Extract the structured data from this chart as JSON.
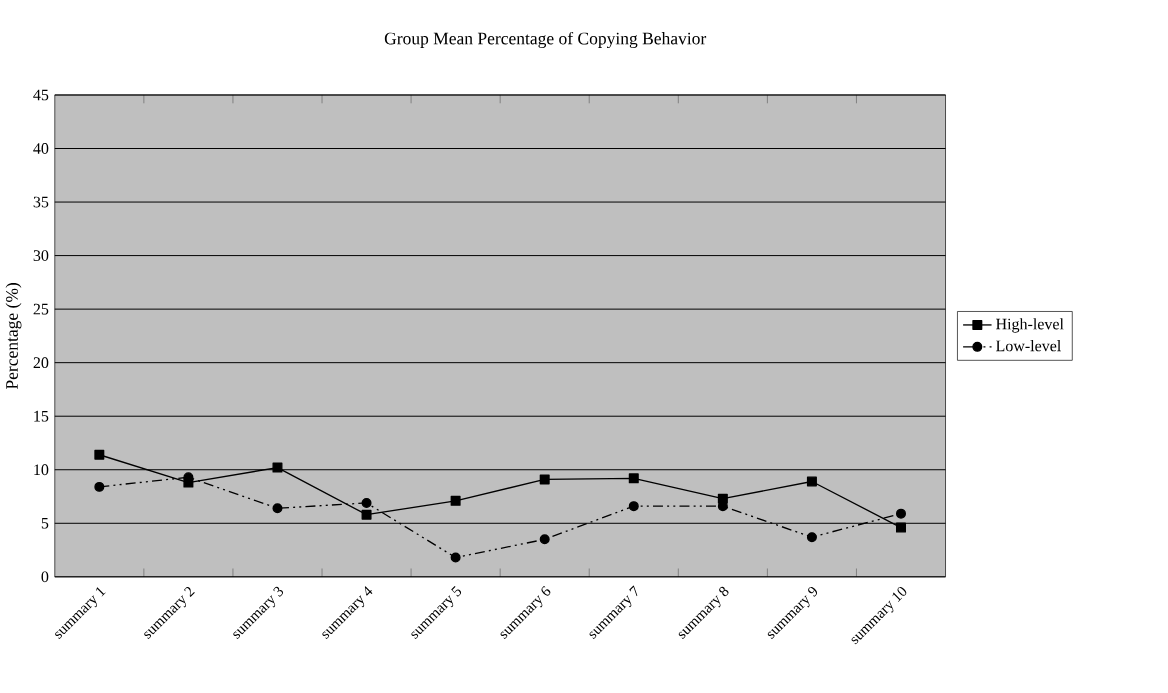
{
  "chart_data": {
    "type": "line",
    "title": "Group Mean Percentage of Copying Behavior",
    "ylabel": "Percentage (%)",
    "categories": [
      "summary 1",
      "summary 2",
      "summary 3",
      "summary 4",
      "summary 5",
      "summary 6",
      "summary 7",
      "summary 8",
      "summary 9",
      "summary 10"
    ],
    "series": [
      {
        "name": "High-level",
        "color": "#000000",
        "marker": "square",
        "line_style": "solid",
        "values": [
          11.4,
          8.8,
          10.2,
          5.8,
          7.1,
          9.1,
          9.2,
          7.3,
          8.9,
          4.6
        ]
      },
      {
        "name": "Low-level",
        "color": "#000000",
        "marker": "circle",
        "line_style": "dashed",
        "values": [
          8.4,
          9.3,
          6.4,
          6.9,
          1.8,
          3.5,
          6.6,
          6.6,
          3.7,
          5.9
        ]
      }
    ],
    "ylim": [
      0,
      45
    ],
    "yticks": [
      0,
      5,
      10,
      15,
      20,
      25,
      30,
      35,
      40,
      45
    ],
    "grid": "y",
    "legend": "right"
  }
}
